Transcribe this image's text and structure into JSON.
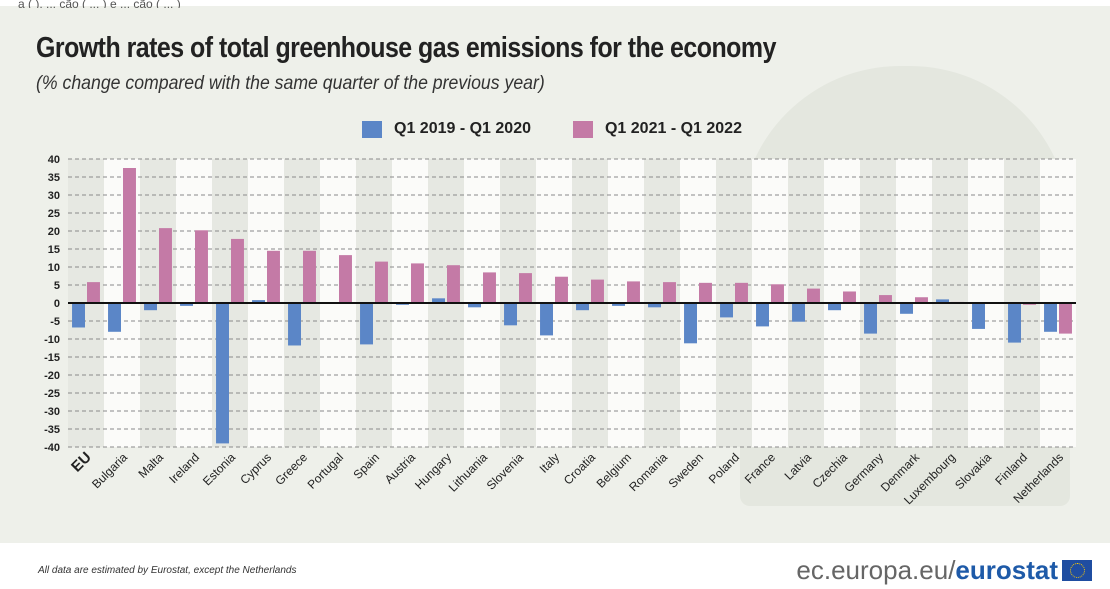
{
  "top_text": "a ( ), ... ção ( ... ) e ... ção ( ... )",
  "title": "Growth rates of total greenhouse gas emissions for the economy",
  "subtitle": "(% change compared with the same quarter of the previous year)",
  "footer_note": "All data are estimated by Eurostat, except the Netherlands",
  "brand": {
    "domain": "ec.europa.eu",
    "slash": "/",
    "name": "eurostat",
    "flag_icon": "eu-flag-icon"
  },
  "colors": {
    "series1": "#5b86c7",
    "series2": "#c47aa6",
    "zero_line": "#111111",
    "grid": "#8a8a8a",
    "band": "#e6e8e2"
  },
  "chart_data": {
    "type": "bar",
    "title": "Growth rates of total greenhouse gas emissions for the economy",
    "subtitle": "(% change compared with the same quarter of the previous year)",
    "xlabel": "",
    "ylabel": "",
    "ylim": [
      -40,
      40
    ],
    "yticks": [
      40,
      35,
      30,
      25,
      20,
      15,
      10,
      5,
      0,
      -5,
      -10,
      -15,
      -20,
      -25,
      -30,
      -35,
      -40
    ],
    "grid": true,
    "legend": "top-center",
    "categories": [
      "EU",
      "Bulgaria",
      "Malta",
      "Ireland",
      "Estonia",
      "Cyprus",
      "Greece",
      "Portugal",
      "Spain",
      "Austria",
      "Hungary",
      "Lithuania",
      "Slovenia",
      "Italy",
      "Croatia",
      "Belgium",
      "Romania",
      "Sweden",
      "Poland",
      "France",
      "Latvia",
      "Czechia",
      "Germany",
      "Denmark",
      "Luxembourg",
      "Slovakia",
      "Finland",
      "Netherlands"
    ],
    "series": [
      {
        "name": "Q1 2019 - Q1 2020",
        "color": "#5b86c7",
        "values": [
          -6.8,
          -8.0,
          -2.0,
          -0.8,
          -39.0,
          0.8,
          -11.8,
          0.0,
          -11.5,
          -0.5,
          1.3,
          -1.2,
          -6.2,
          -9.0,
          -2.0,
          -0.8,
          -1.2,
          -11.2,
          -4.0,
          -6.5,
          -5.2,
          -2.0,
          -8.5,
          -3.0,
          1.0,
          -7.2,
          -11.0,
          -8.0
        ]
      },
      {
        "name": "Q1 2021 - Q1 2022",
        "color": "#c47aa6",
        "values": [
          5.8,
          37.5,
          20.8,
          20.2,
          17.8,
          14.5,
          14.5,
          13.3,
          11.5,
          11.0,
          10.5,
          8.5,
          8.3,
          7.3,
          6.5,
          6.0,
          5.8,
          5.6,
          5.6,
          5.2,
          4.0,
          3.2,
          2.2,
          1.6,
          0.3,
          0.0,
          -0.5,
          -8.5
        ]
      }
    ]
  }
}
